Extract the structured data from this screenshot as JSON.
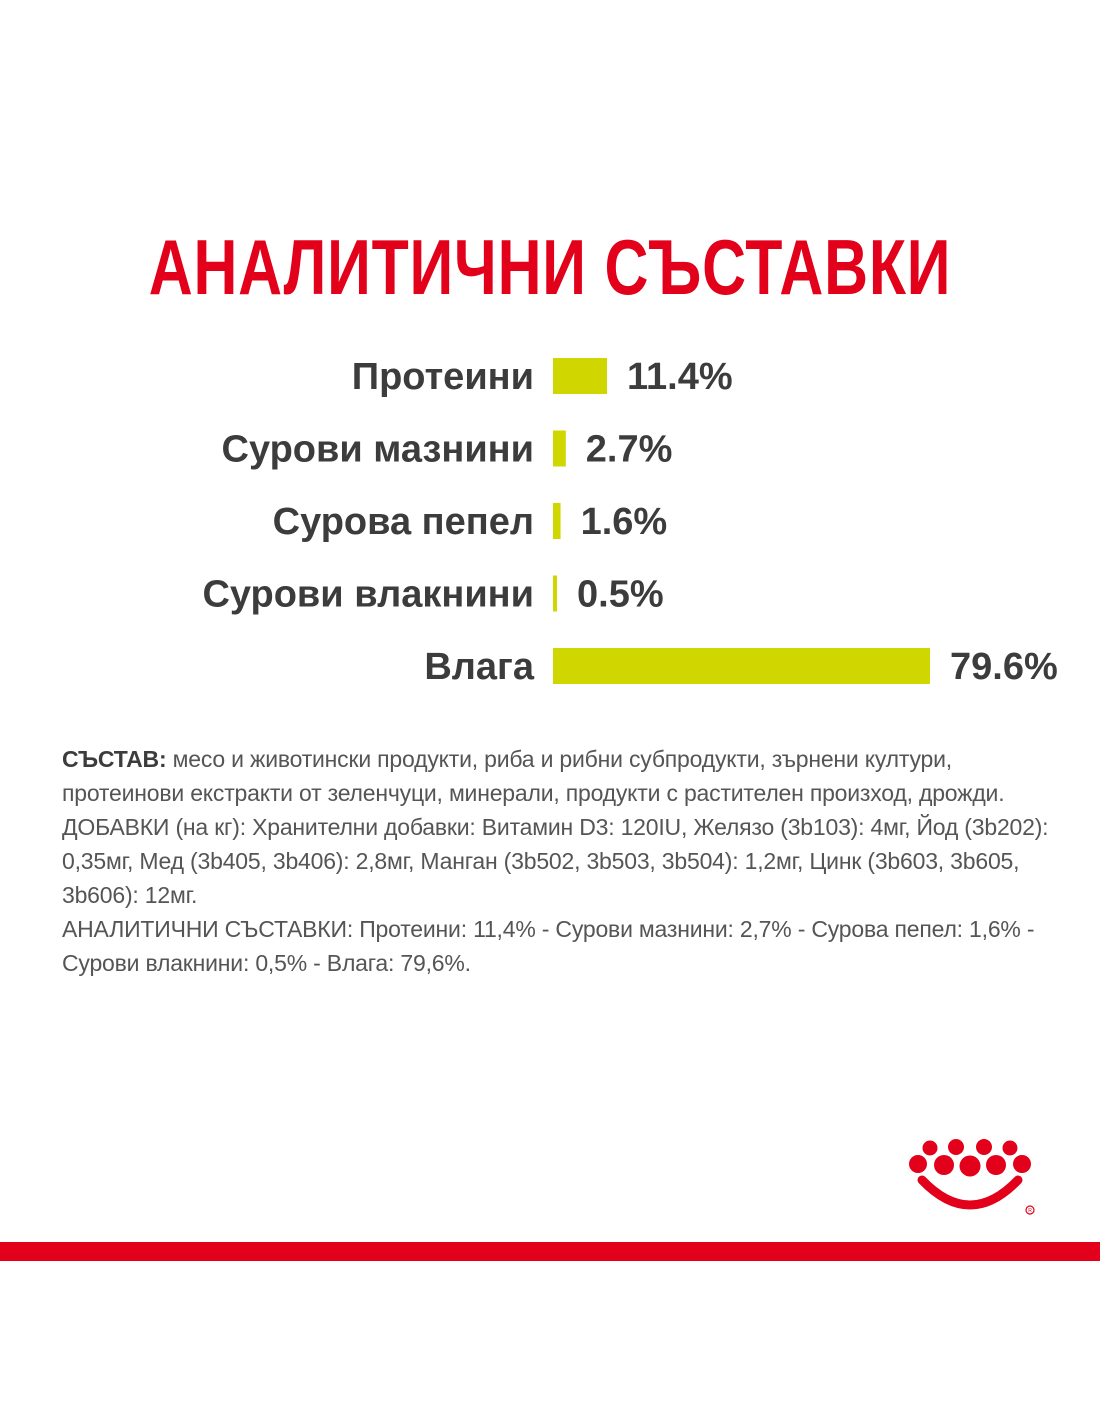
{
  "title": "АНАЛИТИЧНИ СЪСТАВКИ",
  "chart_data": {
    "type": "bar",
    "orientation": "horizontal",
    "categories": [
      "Протеини",
      "Сурови мазнини",
      "Сурова пепел",
      "Сурови влакнини",
      "Влага"
    ],
    "values": [
      11.4,
      2.7,
      1.6,
      0.5,
      79.6
    ],
    "value_labels": [
      "11.4%",
      "2.7%",
      "1.6%",
      "0.5%",
      "79.6%"
    ],
    "unit": "%",
    "bar_color": "#cfd600",
    "xlim": [
      0,
      79.6
    ]
  },
  "composition": {
    "lead": "СЪСТАВ:",
    "ingredients": " месо и животински продукти, риба и рибни субпродукти, зърнени култури, протеинови екстракти от зеленчуци, минерали, продукти с растителен произход, дрожди.",
    "additives": "ДОБАВКИ (на кг): Хранителни добавки: Витамин D3: 120IU, Желязо (3b103): 4мг, Йод (3b202): 0,35мг, Мед (3b405, 3b406): 2,8мг, Манган (3b502, 3b503, 3b504): 1,2мг, Цинк (3b603, 3b605, 3b606): 12мг.",
    "analytical": "АНАЛИТИЧНИ СЪСТАВКИ: Протеини: 11,4% - Сурови мазнини: 2,7% - Сурова пепел: 1,6% - Сурови влакнини: 0,5% - Влага: 79,6%."
  },
  "colors": {
    "brand_red": "#e2001a",
    "text_dark": "#3c3c3c",
    "text_gray": "#555555"
  },
  "logo": {
    "icon": "royal-crown-icon"
  }
}
